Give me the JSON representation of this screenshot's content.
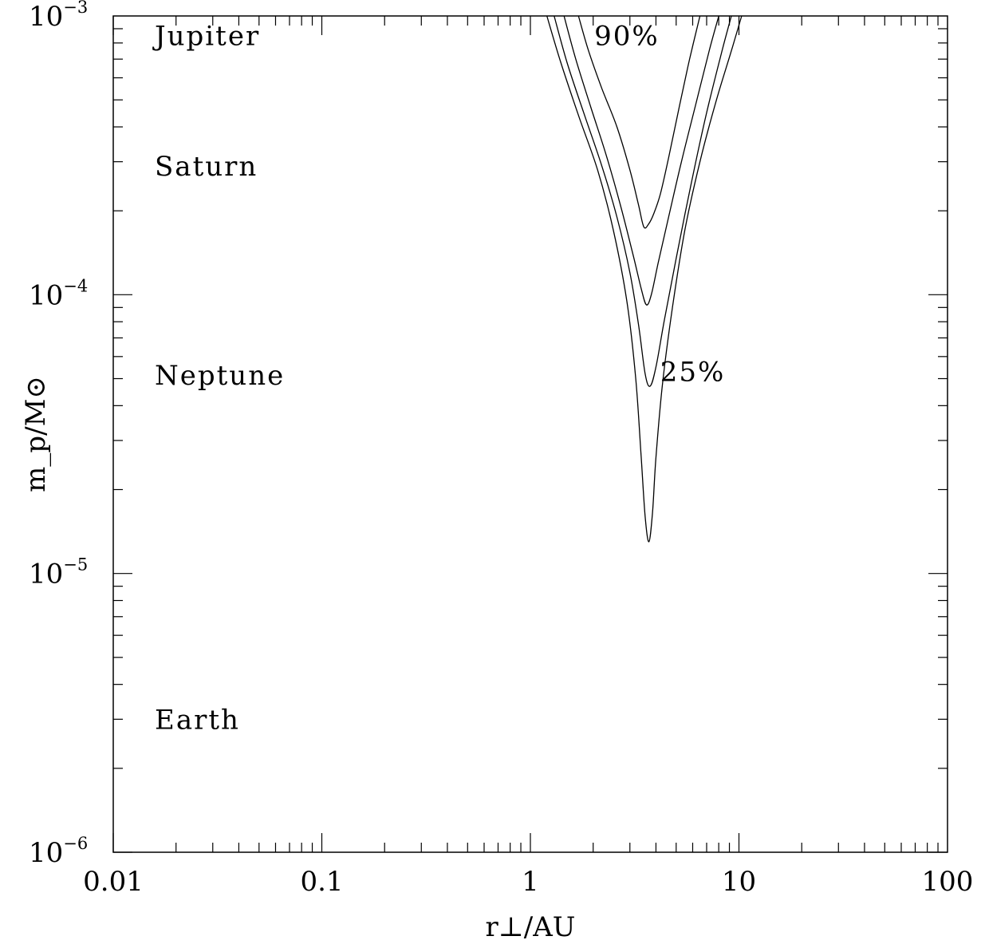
{
  "chart_data": {
    "type": "line",
    "title": "",
    "xlabel": "r⊥/AU",
    "ylabel": "m_p/M⊙",
    "xscale": "log",
    "yscale": "log",
    "xlim": [
      0.01,
      100
    ],
    "ylim": [
      1e-06,
      0.001
    ],
    "grid": false,
    "x_ticks": [
      {
        "value": 0.01,
        "label": "0.01"
      },
      {
        "value": 0.1,
        "label": "0.1"
      },
      {
        "value": 1,
        "label": "1"
      },
      {
        "value": 10,
        "label": "10"
      },
      {
        "value": 100,
        "label": "100"
      }
    ],
    "y_ticks": [
      {
        "value": 1e-06,
        "base": "10",
        "exp": "−6"
      },
      {
        "value": 1e-05,
        "base": "10",
        "exp": "−5"
      },
      {
        "value": 0.0001,
        "base": "10",
        "exp": "−4"
      },
      {
        "value": 0.001,
        "base": "10",
        "exp": "−3"
      }
    ],
    "planet_labels": [
      {
        "name": "Jupiter",
        "y": 0.00085
      },
      {
        "name": "Saturn",
        "y": 0.00029
      },
      {
        "name": "Neptune",
        "y": 5.15e-05
      },
      {
        "name": "Earth",
        "y": 3e-06
      }
    ],
    "contour_labels": [
      {
        "text": "90%",
        "x": 2.9,
        "y": 0.00085
      },
      {
        "text": "25%",
        "x": 6.0,
        "y": 5.3e-05
      }
    ],
    "series": [
      {
        "x": [
          1.7,
          1.9,
          2.2,
          2.6,
          3.0,
          3.3,
          3.5,
          3.7,
          3.9,
          4.2,
          4.6,
          5.2,
          5.8,
          6.5
        ],
        "y": [
          0.001,
          0.00075,
          0.00055,
          0.0004,
          0.00028,
          0.00021,
          0.000175,
          0.00018,
          0.000195,
          0.00023,
          0.00031,
          0.00048,
          0.0007,
          0.001
        ]
      },
      {
        "x": [
          1.45,
          1.65,
          1.95,
          2.3,
          2.7,
          3.1,
          3.4,
          3.6,
          3.8,
          4.1,
          4.6,
          5.3,
          6.2,
          7.2,
          8.0
        ],
        "y": [
          0.001,
          0.0007,
          0.00047,
          0.00032,
          0.00021,
          0.00014,
          0.000105,
          9.2e-05,
          0.0001,
          0.00013,
          0.00019,
          0.0003,
          0.00048,
          0.00075,
          0.001
        ]
      },
      {
        "x": [
          1.3,
          1.5,
          1.8,
          2.2,
          2.6,
          3.0,
          3.3,
          3.55,
          3.75,
          4.0,
          4.4,
          5.0,
          5.9,
          7.0,
          8.3,
          9.2
        ],
        "y": [
          0.001,
          0.00068,
          0.00045,
          0.00029,
          0.00019,
          0.00012,
          7.8e-05,
          5.2e-05,
          4.7e-05,
          5.5e-05,
          8.2e-05,
          0.000135,
          0.00025,
          0.00045,
          0.00075,
          0.001
        ]
      },
      {
        "x": [
          1.2,
          1.4,
          1.7,
          2.1,
          2.5,
          2.9,
          3.2,
          3.4,
          3.55,
          3.7,
          3.85,
          4.0,
          4.3,
          4.8,
          5.5,
          6.5,
          7.8,
          9.2,
          10.3
        ],
        "y": [
          0.001,
          0.00068,
          0.00044,
          0.00028,
          0.00017,
          9.5e-05,
          5e-05,
          2.6e-05,
          1.6e-05,
          1.3e-05,
          1.65e-05,
          2.6e-05,
          4.8e-05,
          9e-05,
          0.00017,
          0.0003,
          0.0005,
          0.00075,
          0.001
        ]
      }
    ]
  }
}
